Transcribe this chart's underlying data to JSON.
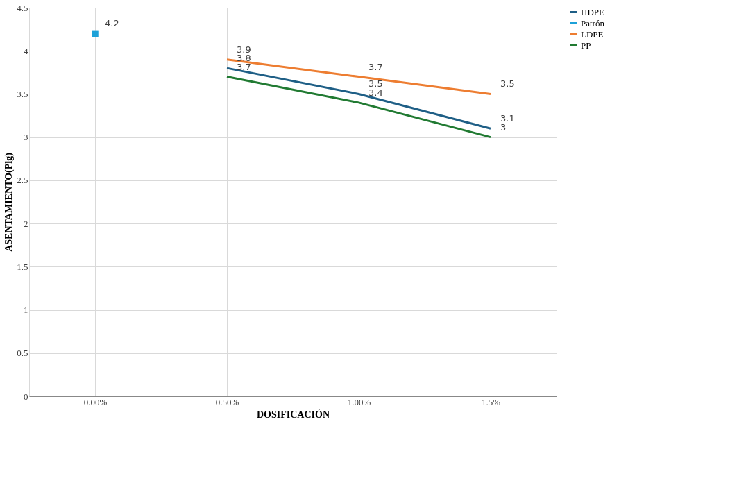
{
  "chart_data": {
    "type": "line",
    "xlabel": "DOSIFICACIÓN",
    "ylabel": "ASENTAMIENTO(Plg)",
    "categories": [
      "0.00%",
      "0.50%",
      "1.00%",
      "1.5%"
    ],
    "series": [
      {
        "name": "HDPE",
        "color": "#1f5f86",
        "values": [
          null,
          3.8,
          3.5,
          3.1
        ]
      },
      {
        "name": "Patrón",
        "color": "#1da1d8",
        "marker": "square",
        "values": [
          4.2,
          null,
          null,
          null
        ]
      },
      {
        "name": "LDPE",
        "color": "#ed7d31",
        "values": [
          null,
          3.9,
          3.7,
          3.5
        ]
      },
      {
        "name": "PP",
        "color": "#217a32",
        "values": [
          null,
          3.7,
          3.4,
          3.0
        ]
      }
    ],
    "ylim": [
      0,
      4.5
    ],
    "yticks": [
      0,
      0.5,
      1,
      1.5,
      2,
      2.5,
      3,
      3.5,
      4,
      4.5
    ],
    "grid": true,
    "legend": "right",
    "data_labels": true
  }
}
